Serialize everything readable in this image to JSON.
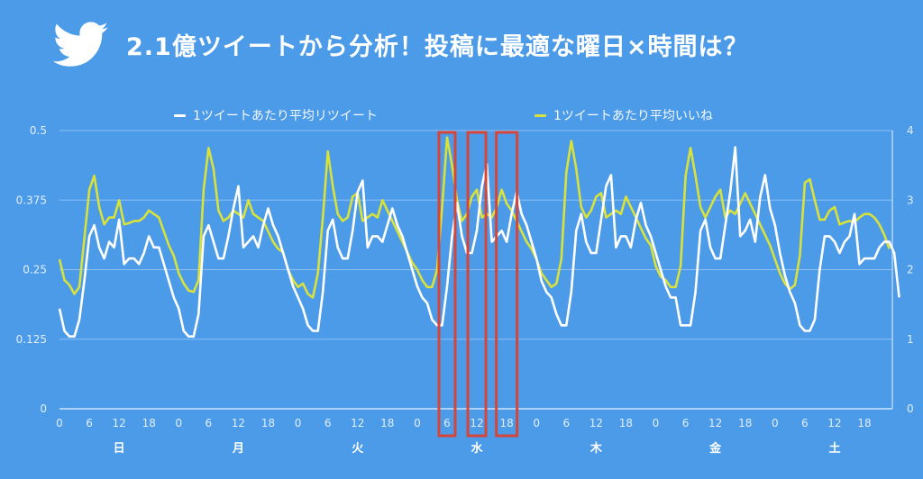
{
  "header": {
    "icon": "twitter-bird-icon",
    "title": "2.1億ツイートから分析！投稿に最適な曜日×時間は？"
  },
  "legend": [
    {
      "label": "1ツイートあたり平均リツイート",
      "color": "#ffffff"
    },
    {
      "label": "1ツイートあたり平均いいね",
      "color": "#d9e23a"
    }
  ],
  "colors": {
    "background": "#4b9be9",
    "retweet_line": "#ffffff",
    "like_line": "#d9e23a",
    "gridline": "#8ec0f2",
    "highlight_box": "#d6453a"
  },
  "chart_data": {
    "type": "line",
    "title": "2.1億ツイートから分析！投稿に最適な曜日×時間は？",
    "xlabel": "",
    "ylabel_left": "1ツイートあたり平均リツイート",
    "ylabel_right": "1ツイートあたり平均いいね",
    "left_axis": {
      "range": [
        0,
        0.5
      ],
      "ticks": [
        "0",
        "0.125",
        "0.25",
        "0.375",
        "0.5"
      ]
    },
    "right_axis": {
      "range": [
        0,
        4
      ],
      "ticks": [
        "0",
        "1",
        "2",
        "3",
        "4"
      ]
    },
    "grid": true,
    "legend_position": "top",
    "days": [
      "日",
      "月",
      "火",
      "水",
      "木",
      "金",
      "土"
    ],
    "hour_ticks": [
      "0",
      "6",
      "12",
      "18"
    ],
    "highlights": [
      {
        "day": "水",
        "hour": 6
      },
      {
        "day": "水",
        "hour": 12
      },
      {
        "day": "水",
        "hour": 18
      }
    ],
    "series": [
      {
        "name": "1ツイートあたり平均リツイート",
        "axis": "left",
        "color": "#ffffff",
        "values": [
          0.18,
          0.14,
          0.13,
          0.13,
          0.16,
          0.23,
          0.31,
          0.33,
          0.29,
          0.27,
          0.3,
          0.29,
          0.34,
          0.26,
          0.27,
          0.27,
          0.26,
          0.28,
          0.31,
          0.29,
          0.29,
          0.26,
          0.23,
          0.2,
          0.18,
          0.14,
          0.13,
          0.13,
          0.17,
          0.31,
          0.33,
          0.3,
          0.27,
          0.27,
          0.31,
          0.36,
          0.4,
          0.29,
          0.3,
          0.31,
          0.29,
          0.33,
          0.36,
          0.33,
          0.31,
          0.28,
          0.25,
          0.22,
          0.2,
          0.18,
          0.15,
          0.14,
          0.14,
          0.21,
          0.32,
          0.34,
          0.29,
          0.27,
          0.27,
          0.32,
          0.39,
          0.41,
          0.29,
          0.31,
          0.31,
          0.3,
          0.33,
          0.36,
          0.33,
          0.31,
          0.28,
          0.25,
          0.22,
          0.2,
          0.19,
          0.16,
          0.15,
          0.15,
          0.22,
          0.31,
          0.37,
          0.31,
          0.28,
          0.28,
          0.32,
          0.4,
          0.44,
          0.3,
          0.31,
          0.32,
          0.3,
          0.35,
          0.39,
          0.35,
          0.33,
          0.3,
          0.27,
          0.23,
          0.21,
          0.2,
          0.17,
          0.15,
          0.15,
          0.21,
          0.32,
          0.35,
          0.3,
          0.28,
          0.28,
          0.34,
          0.4,
          0.42,
          0.29,
          0.31,
          0.31,
          0.29,
          0.34,
          0.37,
          0.33,
          0.31,
          0.28,
          0.25,
          0.22,
          0.2,
          0.2,
          0.15,
          0.15,
          0.15,
          0.21,
          0.32,
          0.34,
          0.29,
          0.27,
          0.27,
          0.33,
          0.39,
          0.47,
          0.31,
          0.32,
          0.34,
          0.3,
          0.38,
          0.42,
          0.36,
          0.33,
          0.28,
          0.24,
          0.21,
          0.19,
          0.15,
          0.14,
          0.14,
          0.16,
          0.25,
          0.31,
          0.31,
          0.3,
          0.28,
          0.3,
          0.31,
          0.35,
          0.26,
          0.27,
          0.27,
          0.27,
          0.29,
          0.3,
          0.3,
          0.28,
          0.2
        ]
      },
      {
        "name": "1ツイートあたり平均いいね",
        "axis": "right",
        "color": "#d9e23a",
        "values": [
          2.15,
          1.85,
          1.78,
          1.65,
          1.75,
          2.45,
          3.15,
          3.35,
          2.9,
          2.65,
          2.75,
          2.75,
          3.0,
          2.65,
          2.67,
          2.7,
          2.7,
          2.75,
          2.85,
          2.8,
          2.75,
          2.55,
          2.35,
          2.2,
          1.95,
          1.8,
          1.7,
          1.68,
          1.85,
          3.15,
          3.75,
          3.45,
          2.85,
          2.7,
          2.75,
          2.85,
          2.8,
          2.75,
          3.0,
          2.8,
          2.75,
          2.7,
          2.55,
          2.4,
          2.3,
          2.25,
          2.0,
          1.85,
          1.75,
          1.8,
          1.65,
          1.6,
          1.95,
          2.75,
          3.7,
          3.2,
          2.8,
          2.7,
          2.75,
          3.05,
          3.1,
          2.7,
          2.75,
          2.8,
          2.75,
          3.0,
          2.85,
          2.7,
          2.55,
          2.4,
          2.25,
          2.1,
          2.0,
          1.85,
          1.75,
          1.75,
          2.0,
          2.9,
          3.9,
          3.5,
          3.0,
          2.7,
          2.8,
          3.05,
          3.15,
          2.75,
          2.8,
          2.75,
          2.9,
          3.15,
          2.95,
          2.85,
          2.7,
          2.55,
          2.4,
          2.3,
          2.15,
          1.95,
          1.85,
          1.75,
          1.8,
          2.15,
          3.4,
          3.85,
          3.45,
          2.9,
          2.75,
          2.85,
          3.05,
          3.1,
          2.75,
          2.8,
          2.85,
          2.8,
          3.05,
          2.9,
          2.75,
          2.6,
          2.45,
          2.35,
          2.05,
          1.9,
          1.85,
          1.75,
          1.75,
          2.05,
          3.35,
          3.75,
          3.35,
          2.9,
          2.75,
          2.9,
          3.05,
          3.15,
          2.75,
          2.85,
          2.8,
          2.95,
          3.1,
          2.95,
          2.8,
          2.65,
          2.5,
          2.35,
          2.15,
          1.95,
          1.8,
          1.72,
          1.78,
          2.2,
          3.25,
          3.3,
          3.0,
          2.72,
          2.72,
          2.85,
          2.9,
          2.65,
          2.68,
          2.7,
          2.68,
          2.75,
          2.8,
          2.8,
          2.75,
          2.65,
          2.5,
          2.3
        ]
      }
    ]
  }
}
